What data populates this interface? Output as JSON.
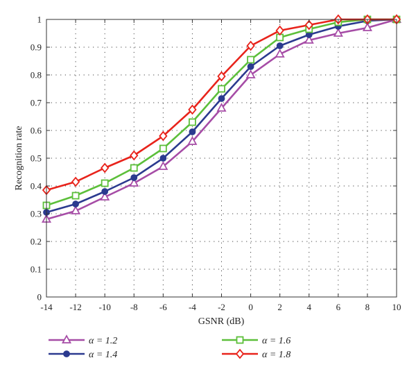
{
  "chart_data": {
    "type": "line",
    "title": "",
    "xlabel": "GSNR (dB)",
    "ylabel": "Recognition rate",
    "x": [
      -14,
      -12,
      -10,
      -8,
      -6,
      -4,
      -2,
      0,
      2,
      4,
      6,
      8,
      10
    ],
    "xlim": [
      -14,
      10
    ],
    "ylim": [
      0,
      1
    ],
    "xticks": [
      -14,
      -12,
      -10,
      -8,
      -6,
      -4,
      -2,
      0,
      2,
      4,
      6,
      8,
      10
    ],
    "yticks": [
      0,
      0.1,
      0.2,
      0.3,
      0.4,
      0.5,
      0.6,
      0.7,
      0.8,
      0.9,
      1
    ],
    "xtick_labels": [
      "-14",
      "-12",
      "-10",
      "-8",
      "-6",
      "-4",
      "-2",
      "0",
      "2",
      "4",
      "6",
      "8",
      "10"
    ],
    "ytick_labels": [
      "0",
      "0.1",
      "0.2",
      "0.3",
      "0.4",
      "0.5",
      "0.6",
      "0.7",
      "0.8",
      "0.9",
      "1"
    ],
    "grid": true,
    "legend_position": "bottom",
    "series": [
      {
        "name": "α = 1.2",
        "color": "#a64ca6",
        "marker": "triangle",
        "values": [
          0.28,
          0.31,
          0.36,
          0.41,
          0.47,
          0.56,
          0.68,
          0.8,
          0.875,
          0.925,
          0.95,
          0.97,
          1.0
        ]
      },
      {
        "name": "α = 1.4",
        "color": "#2b3a8f",
        "marker": "circle",
        "values": [
          0.305,
          0.335,
          0.38,
          0.43,
          0.5,
          0.595,
          0.715,
          0.83,
          0.905,
          0.945,
          0.975,
          0.995,
          1.0
        ]
      },
      {
        "name": "α = 1.6",
        "color": "#5cbf3a",
        "marker": "square",
        "values": [
          0.33,
          0.365,
          0.41,
          0.465,
          0.535,
          0.63,
          0.75,
          0.855,
          0.935,
          0.965,
          0.99,
          1.0,
          1.0
        ]
      },
      {
        "name": "α = 1.8",
        "color": "#e8231b",
        "marker": "diamond",
        "values": [
          0.385,
          0.415,
          0.465,
          0.51,
          0.58,
          0.675,
          0.795,
          0.905,
          0.96,
          0.98,
          1.0,
          1.0,
          1.0
        ]
      }
    ]
  }
}
